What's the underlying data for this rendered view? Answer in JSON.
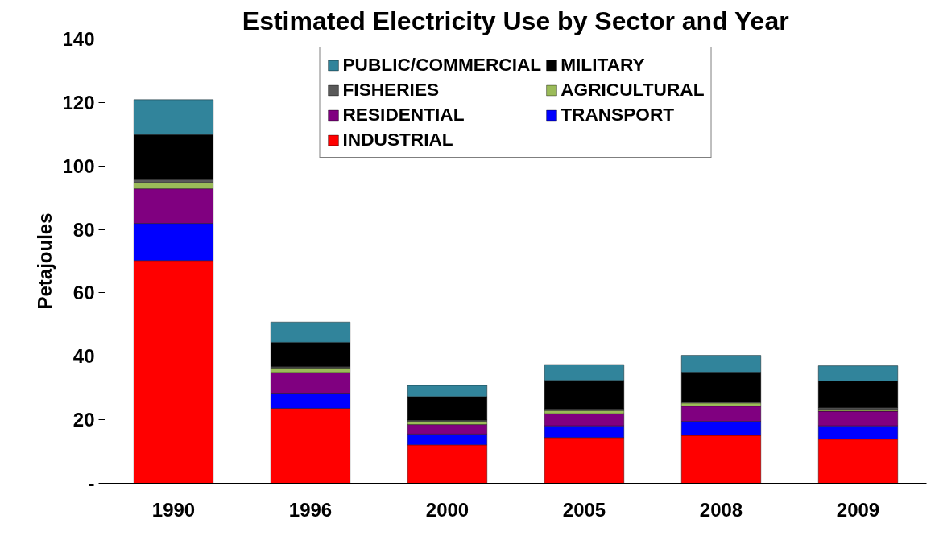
{
  "chart_data": {
    "type": "bar",
    "stacked": true,
    "title": "Estimated Electricity Use by Sector and Year",
    "ylabel": "Petajoules",
    "categories": [
      "1990",
      "1996",
      "2000",
      "2005",
      "2008",
      "2009"
    ],
    "series": [
      {
        "name": "INDUSTRIAL",
        "color": "#ff0000",
        "values": [
          70.2,
          23.6,
          12.1,
          14.4,
          15.1,
          13.9
        ]
      },
      {
        "name": "TRANSPORT",
        "color": "#0000ff",
        "values": [
          11.7,
          4.8,
          3.4,
          3.7,
          4.4,
          4.2
        ]
      },
      {
        "name": "RESIDENTIAL",
        "color": "#800080",
        "values": [
          10.9,
          6.5,
          3.0,
          3.8,
          4.8,
          4.6
        ]
      },
      {
        "name": "AGRICULTURAL",
        "color": "#9bbb59",
        "values": [
          2.0,
          1.4,
          1.0,
          1.0,
          1.0,
          0.6
        ]
      },
      {
        "name": "FISHERIES",
        "color": "#595959",
        "values": [
          0.9,
          0.4,
          0.4,
          0.5,
          0.3,
          0.5
        ]
      },
      {
        "name": "MILITARY",
        "color": "#000000",
        "values": [
          14.2,
          7.7,
          7.4,
          9.0,
          9.4,
          8.4
        ]
      },
      {
        "name": "PUBLIC/COMMERCIAL",
        "color": "#31849b",
        "values": [
          11.0,
          6.4,
          3.5,
          5.0,
          5.3,
          4.8
        ]
      }
    ],
    "ylim": [
      0,
      140
    ],
    "yticks": [
      {
        "value": 0,
        "label": "-"
      },
      20,
      40,
      60,
      80,
      100,
      120,
      140
    ],
    "grid": false,
    "legend": "top"
  }
}
